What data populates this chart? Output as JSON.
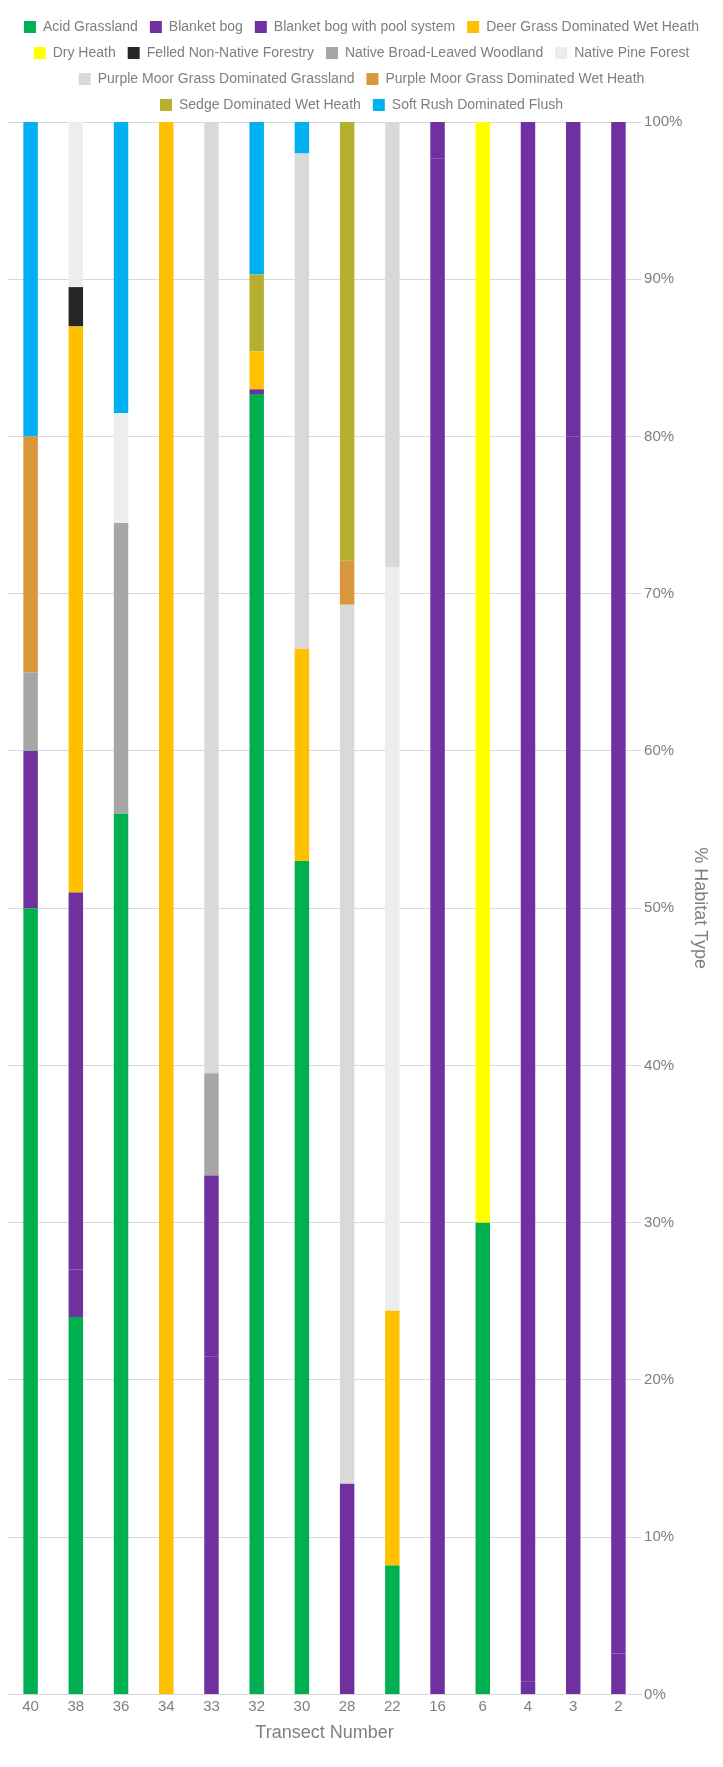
{
  "chart_data": {
    "type": "bar",
    "stacked": true,
    "xlabel": "Transect Number",
    "ylabel": "% Habitat Type",
    "categories": [
      "40",
      "38",
      "36",
      "34",
      "33",
      "32",
      "30",
      "28",
      "22",
      "16",
      "6",
      "4",
      "3",
      "2"
    ],
    "ylim": [
      0,
      100
    ],
    "yticks": [
      {
        "value": 0,
        "label": "0%"
      },
      {
        "value": 10,
        "label": "10%"
      },
      {
        "value": 20,
        "label": "20%"
      },
      {
        "value": 30,
        "label": "30%"
      },
      {
        "value": 40,
        "label": "40%"
      },
      {
        "value": 50,
        "label": "50%"
      },
      {
        "value": 60,
        "label": "60%"
      },
      {
        "value": 70,
        "label": "70%"
      },
      {
        "value": 80,
        "label": "80%"
      },
      {
        "value": 90,
        "label": "90%"
      },
      {
        "value": 100,
        "label": "100%"
      }
    ],
    "grid": "y",
    "legend": "top",
    "series": [
      {
        "name": "Acid Grassland",
        "color": "#00b050",
        "values": [
          50,
          24,
          56,
          null,
          null,
          82.7,
          53,
          null,
          8.2,
          null,
          30,
          null,
          null,
          null
        ]
      },
      {
        "name": "Blanket bog",
        "color": "#7030a0",
        "values": [
          10,
          3,
          null,
          null,
          21.5,
          0.3,
          null,
          13.4,
          null,
          97.7,
          null,
          0.8,
          80,
          2.6
        ]
      },
      {
        "name": "Blanket bog with pool system",
        "color": "#7030a0",
        "values": [
          null,
          24,
          null,
          null,
          11.5,
          null,
          null,
          null,
          null,
          2.3,
          null,
          99.2,
          20,
          97.4
        ]
      },
      {
        "name": "Deer Grass Dominated Wet Heath",
        "color": "#ffc000",
        "values": [
          null,
          36,
          null,
          100,
          null,
          2.4,
          13.5,
          null,
          16.2,
          null,
          null,
          null,
          null,
          null
        ]
      },
      {
        "name": "Dry Heath",
        "color": "#ffff00",
        "values": [
          null,
          null,
          null,
          null,
          null,
          null,
          null,
          null,
          null,
          null,
          70,
          null,
          null,
          null
        ]
      },
      {
        "name": "Felled Non-Native Forestry",
        "color": "#262626",
        "values": [
          null,
          2.5,
          null,
          null,
          null,
          null,
          null,
          null,
          null,
          null,
          null,
          null,
          null,
          null
        ]
      },
      {
        "name": "Native Broad-Leaved Woodland",
        "color": "#a6a6a6",
        "values": [
          5,
          null,
          18.5,
          null,
          6.5,
          null,
          null,
          null,
          null,
          null,
          null,
          null,
          null,
          null
        ]
      },
      {
        "name": "Native Pine Forest",
        "color": "#ededed",
        "values": [
          null,
          10.5,
          7,
          null,
          null,
          null,
          null,
          null,
          47.3,
          null,
          null,
          null,
          null,
          null
        ]
      },
      {
        "name": "Purple Moor Grass Dominated Grassland",
        "color": "#d9d9d9",
        "values": [
          null,
          null,
          null,
          null,
          60.5,
          null,
          31.5,
          55.9,
          28.3,
          null,
          null,
          null,
          null,
          null
        ]
      },
      {
        "name": "Purple Moor Grass Dominated Wet Heath",
        "color": "#d9963a",
        "values": [
          15,
          null,
          null,
          null,
          null,
          null,
          null,
          2.8,
          null,
          null,
          null,
          null,
          null,
          null
        ]
      },
      {
        "name": "Sedge Dominated Wet Heath",
        "color": "#b5b02e",
        "values": [
          null,
          null,
          null,
          null,
          null,
          4.9,
          null,
          27.9,
          null,
          null,
          null,
          null,
          null,
          null
        ]
      },
      {
        "name": "Soft Rush Dominated Flush",
        "color": "#00b0f0",
        "values": [
          20,
          null,
          18.5,
          null,
          null,
          9.7,
          2,
          null,
          null,
          null,
          null,
          null,
          null,
          null
        ]
      }
    ]
  }
}
